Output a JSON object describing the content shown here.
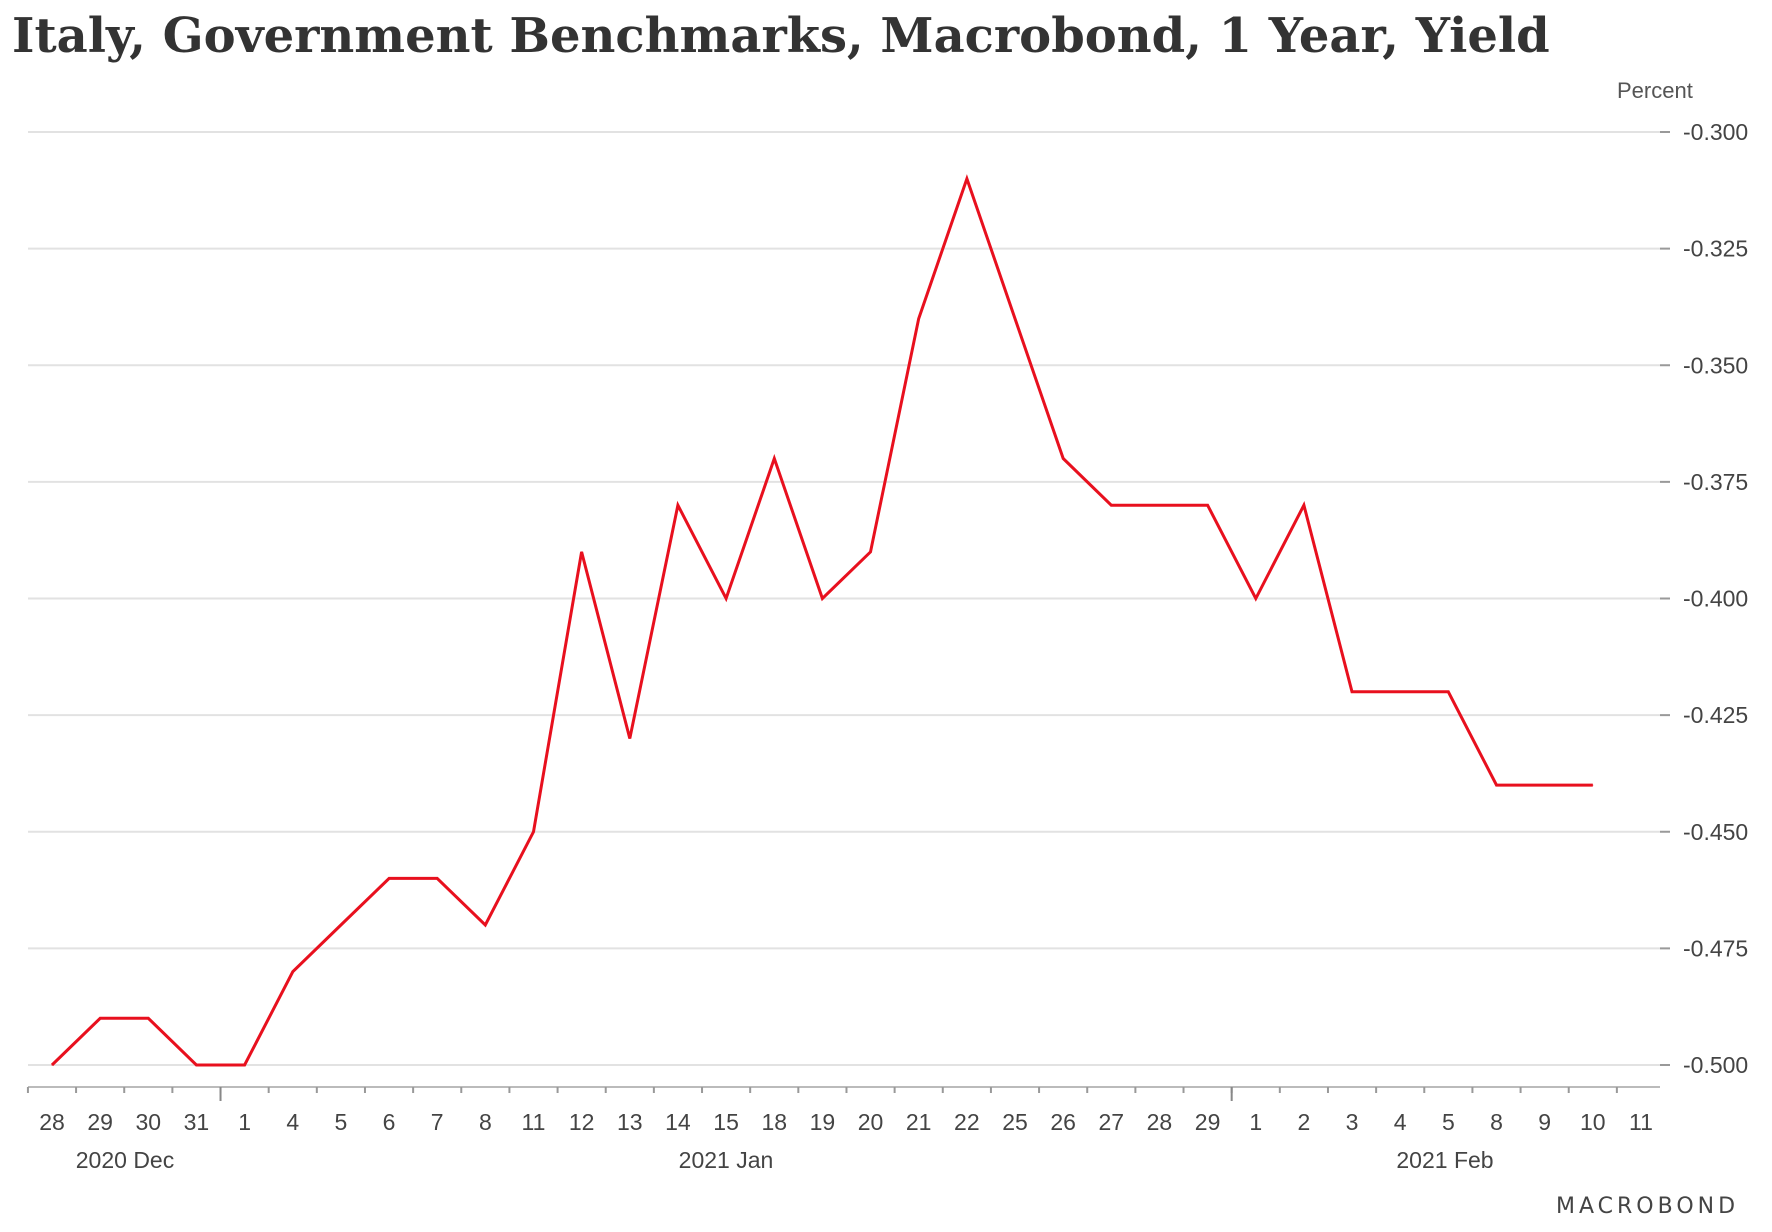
{
  "chart_data": {
    "type": "line",
    "title": "Italy, Government Benchmarks, Macrobond, 1 Year, Yield",
    "unit_label": "Percent",
    "brand": "MACROBOND",
    "ylim": [
      -0.5,
      -0.3
    ],
    "y_ticks": [
      "-0.300",
      "-0.325",
      "-0.350",
      "-0.375",
      "-0.400",
      "-0.425",
      "-0.450",
      "-0.475",
      "-0.500"
    ],
    "x_tick_labels": [
      "28",
      "29",
      "30",
      "31",
      "1",
      "4",
      "5",
      "6",
      "7",
      "8",
      "11",
      "12",
      "13",
      "14",
      "15",
      "18",
      "19",
      "20",
      "21",
      "22",
      "25",
      "26",
      "27",
      "28",
      "29",
      "1",
      "2",
      "3",
      "4",
      "5",
      "8",
      "9",
      "10",
      "11"
    ],
    "month_labels": [
      "2020 Dec",
      "2021 Jan",
      "2021 Feb"
    ],
    "grid": true,
    "series": [
      {
        "color": "#e8101e",
        "x": [
          "2020-12-28",
          "2020-12-29",
          "2020-12-30",
          "2020-12-31",
          "2021-01-01",
          "2021-01-04",
          "2021-01-05",
          "2021-01-06",
          "2021-01-07",
          "2021-01-08",
          "2021-01-11",
          "2021-01-12",
          "2021-01-13",
          "2021-01-14",
          "2021-01-15",
          "2021-01-18",
          "2021-01-19",
          "2021-01-20",
          "2021-01-21",
          "2021-01-22",
          "2021-01-25",
          "2021-01-26",
          "2021-01-27",
          "2021-01-28",
          "2021-01-29",
          "2021-02-01",
          "2021-02-02",
          "2021-02-03",
          "2021-02-04",
          "2021-02-05",
          "2021-02-08",
          "2021-02-09",
          "2021-02-10"
        ],
        "values": [
          -0.5,
          -0.49,
          -0.49,
          -0.5,
          -0.5,
          -0.48,
          -0.47,
          -0.46,
          -0.46,
          -0.47,
          -0.45,
          -0.39,
          -0.43,
          -0.38,
          -0.4,
          -0.37,
          -0.4,
          -0.39,
          -0.34,
          -0.31,
          -0.34,
          -0.37,
          -0.38,
          -0.38,
          -0.38,
          -0.4,
          -0.38,
          -0.42,
          -0.42,
          -0.42,
          -0.44,
          -0.44,
          -0.44
        ]
      }
    ]
  }
}
